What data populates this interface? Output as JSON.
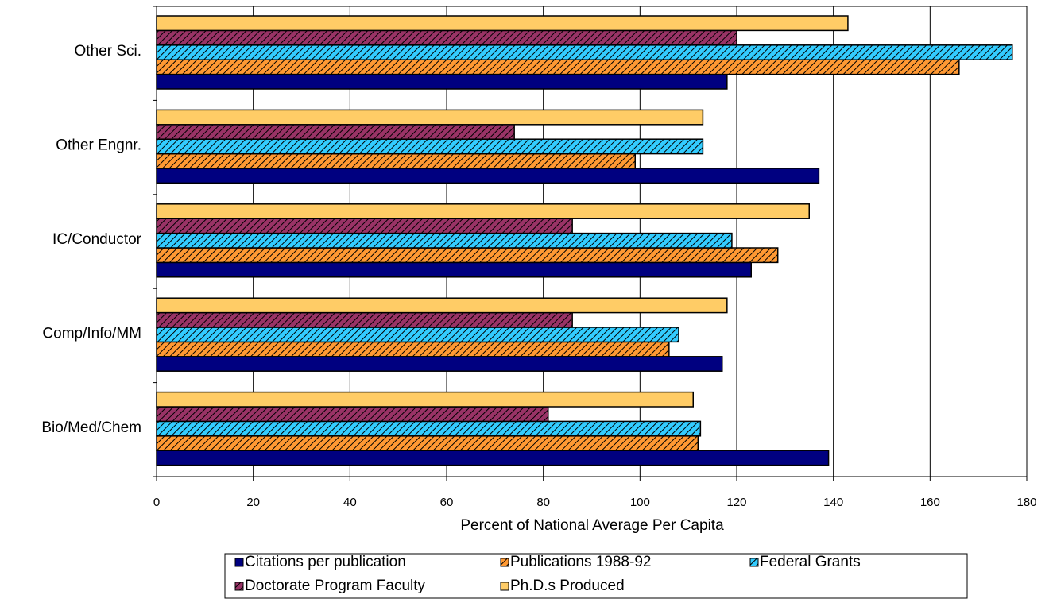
{
  "chart_data": {
    "type": "hbar",
    "x_label": "Percent of National Average Per Capita",
    "categories": [
      "Other Sci.",
      "Other Engnr.",
      "IC/Conductor",
      "Comp/Info/MM",
      "Bio/Med/Chem"
    ],
    "series": [
      {
        "name": "Citations per publication",
        "color": "#000080",
        "hatched": false,
        "values": [
          118,
          137,
          123,
          117,
          139
        ]
      },
      {
        "name": "Publications 1988-92",
        "color": "#ff9933",
        "hatched": true,
        "values": [
          166,
          99,
          128.5,
          106,
          112
        ]
      },
      {
        "name": "Federal Grants",
        "color": "#33ccff",
        "hatched": true,
        "values": [
          177,
          113,
          119,
          108,
          112.5
        ]
      },
      {
        "name": "Doctorate Program Faculty",
        "color": "#993366",
        "hatched": true,
        "values": [
          120,
          74,
          86,
          86,
          81
        ]
      },
      {
        "name": "Ph.D.s Produced",
        "color": "#ffcc66",
        "hatched": false,
        "values": [
          143,
          113,
          135,
          118,
          111
        ]
      }
    ],
    "xlim": [
      0,
      180
    ],
    "xticks": [
      0,
      20,
      40,
      60,
      80,
      100,
      120,
      140,
      160,
      180
    ],
    "grid": true
  }
}
